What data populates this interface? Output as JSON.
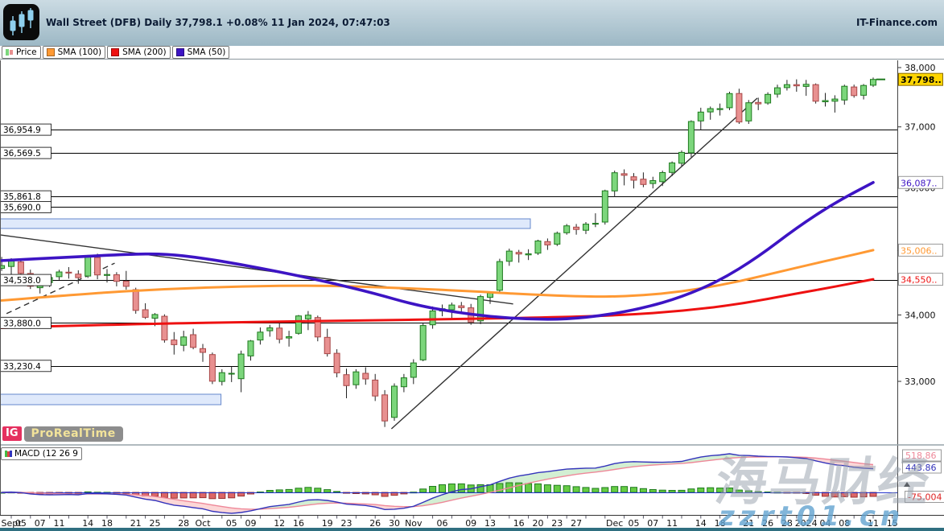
{
  "header": {
    "title": "Wall Street (DFB) Daily 37,798.1 +0.08% 11 Jan 2024, 07:47:03",
    "brand": "IT-Finance.com"
  },
  "legend": {
    "items": [
      {
        "label": "Price",
        "icon": "price-candles-icon"
      },
      {
        "label": "SMA (100)",
        "icon": "orange-square-icon",
        "color_key": "sma100"
      },
      {
        "label": "SMA (200)",
        "icon": "red-square-icon",
        "color_key": "sma200"
      },
      {
        "label": "SMA (50)",
        "icon": "blue-square-icon",
        "color_key": "sma50"
      }
    ]
  },
  "macd_legend": {
    "label": "MACD (12 26 9"
  },
  "badge": {
    "ig": "IG",
    "prorealtime": "ProRealTime"
  },
  "watermark": {
    "text_cn": "海马财经",
    "site": "zzrt01.cn"
  },
  "colors": {
    "up_fill": "#7CD67C",
    "up_stroke": "#1E7A1E",
    "down_fill": "#E89090",
    "down_stroke": "#A84848",
    "wick": "#222222",
    "sma50": "#3D14C4",
    "sma100": "#FF9933",
    "sma200": "#EE1111",
    "macd_line": "#3333BB",
    "signal_line": "#EE8899",
    "fill_up": "rgba(130,210,130,0.35)",
    "fill_down": "rgba(245,140,140,0.35)",
    "hist_up": "#66CC44",
    "hist_up_stroke": "#1E7A1E",
    "hist_down": "#DD6666",
    "hist_down_stroke": "#993333",
    "zone_fill": "#DFE9FB",
    "zone_stroke": "#6688CC",
    "level": "#000000",
    "trend": "#333333",
    "last_bg": "#FFD500",
    "last_border": "#8A6D00",
    "axis_text": "#111111"
  },
  "chart_data": {
    "type": "candlestick",
    "title": "Wall Street (DFB) Daily",
    "last_price": 37798.1,
    "change_pct": "+0.08%",
    "timestamp": "11 Jan 2024, 07:47:03",
    "scale_type": "log",
    "ylim": [
      32080,
      38000
    ],
    "right_axis_ticks": [
      {
        "label": "38,000",
        "price": 38000
      },
      {
        "label": "37,000",
        "price": 37000
      },
      {
        "label": "36,000",
        "price": 36000
      },
      {
        "label": "35,000",
        "price": 35000
      },
      {
        "label": "34,000",
        "price": 34000
      },
      {
        "label": "33,000",
        "price": 33000
      }
    ],
    "axis_markers": [
      {
        "label": "37,798..",
        "price": 37798.1,
        "kind": "last"
      },
      {
        "label": "36,087..",
        "price": 36087,
        "kind": "sma50"
      },
      {
        "label": "35,006..",
        "price": 35006,
        "kind": "sma100"
      },
      {
        "label": "34,550..",
        "price": 34550,
        "kind": "sma200"
      }
    ],
    "levels": [
      {
        "label": "36,954.9",
        "price": 36954.9
      },
      {
        "label": "36,569.5",
        "price": 36569.5
      },
      {
        "label": "35,861.8",
        "price": 35861.8
      },
      {
        "label": "35,690.0",
        "price": 35690.0
      },
      {
        "label": "34,538.0",
        "price": 34538.0
      },
      {
        "label": "33,880.0",
        "price": 33880.0
      },
      {
        "label": "33,230.4",
        "price": 33230.4
      }
    ],
    "zones": [
      {
        "top": 35502,
        "bottom": 35348,
        "i1": -1.2,
        "i2": 54.2
      },
      {
        "top": 32810,
        "bottom": 32656,
        "i1": -1.2,
        "i2": 21.9
      }
    ],
    "trendlines": [
      {
        "i1": -1.2,
        "p1": 35247,
        "i2": 52.4,
        "p2": 34169,
        "style": "solid"
      },
      {
        "i1": 39.7,
        "p1": 32304,
        "i2": 77.9,
        "p2": 37481,
        "style": "solid"
      },
      {
        "i1": -0.5,
        "p1": 34021,
        "i2": 10.8,
        "p2": 34801,
        "style": "dashed"
      }
    ],
    "sma50": [
      [
        -1.2,
        34840
      ],
      [
        0,
        34850
      ],
      [
        6,
        34895
      ],
      [
        12,
        34940
      ],
      [
        16,
        34950
      ],
      [
        20,
        34880
      ],
      [
        24,
        34780
      ],
      [
        28,
        34665
      ],
      [
        33,
        34510
      ],
      [
        38,
        34330
      ],
      [
        42,
        34160
      ],
      [
        46,
        34050
      ],
      [
        50,
        33975
      ],
      [
        54,
        33935
      ],
      [
        58,
        33935
      ],
      [
        62,
        33995
      ],
      [
        66,
        34105
      ],
      [
        70,
        34275
      ],
      [
        74,
        34530
      ],
      [
        78,
        34900
      ],
      [
        82,
        35360
      ],
      [
        86,
        35760
      ],
      [
        90,
        36087
      ]
    ],
    "sma100": [
      [
        -1.2,
        34220
      ],
      [
        8,
        34330
      ],
      [
        16,
        34400
      ],
      [
        24,
        34440
      ],
      [
        32,
        34455
      ],
      [
        40,
        34420
      ],
      [
        48,
        34365
      ],
      [
        54,
        34315
      ],
      [
        60,
        34280
      ],
      [
        64,
        34285
      ],
      [
        68,
        34325
      ],
      [
        72,
        34405
      ],
      [
        76,
        34515
      ],
      [
        80,
        34660
      ],
      [
        84,
        34800
      ],
      [
        87,
        34900
      ],
      [
        90,
        35006
      ]
    ],
    "sma200": [
      [
        -1.2,
        33805
      ],
      [
        12,
        33860
      ],
      [
        24,
        33890
      ],
      [
        36,
        33915
      ],
      [
        48,
        33940
      ],
      [
        58,
        33968
      ],
      [
        64,
        34000
      ],
      [
        70,
        34060
      ],
      [
        76,
        34165
      ],
      [
        82,
        34330
      ],
      [
        86,
        34435
      ],
      [
        90,
        34550
      ]
    ],
    "x_labels": [
      [
        "Sept",
        0
      ],
      [
        "05",
        1
      ],
      [
        "07",
        3
      ],
      [
        "11",
        5
      ],
      [
        "14",
        8
      ],
      [
        "18",
        10
      ],
      [
        "21",
        13
      ],
      [
        "25",
        15
      ],
      [
        "28",
        18
      ],
      [
        "Oct",
        20
      ],
      [
        "05",
        23
      ],
      [
        "09",
        25
      ],
      [
        "12",
        28
      ],
      [
        "16",
        30
      ],
      [
        "19",
        33
      ],
      [
        "23",
        35
      ],
      [
        "26",
        38
      ],
      [
        "30",
        40
      ],
      [
        "Nov",
        42
      ],
      [
        "06",
        45
      ],
      [
        "09",
        48
      ],
      [
        "13",
        50
      ],
      [
        "16",
        53
      ],
      [
        "20",
        55
      ],
      [
        "23",
        57
      ],
      [
        "27",
        59
      ],
      [
        "Dec",
        63
      ],
      [
        "05",
        65
      ],
      [
        "07",
        67
      ],
      [
        "11",
        69
      ],
      [
        "14",
        72
      ],
      [
        "18",
        74
      ],
      [
        "21",
        77
      ],
      [
        "26",
        79
      ],
      [
        "28",
        81
      ],
      [
        "2024",
        83
      ],
      [
        "04",
        85
      ],
      [
        "08",
        87
      ],
      [
        "11",
        90
      ],
      [
        "15",
        92
      ]
    ],
    "macd": {
      "params": "12,26,9",
      "signal_value": "518.86",
      "macd_value": "443.86",
      "histogram_value": "-75.004"
    },
    "candles": [
      [
        "Aug 31",
        34720,
        34900,
        34680,
        34763
      ],
      [
        "Sep 01",
        34750,
        34880,
        34600,
        34838
      ],
      [
        "Sep 05",
        34820,
        34850,
        34560,
        34642
      ],
      [
        "Sep 06",
        34640,
        34700,
        34400,
        34443
      ],
      [
        "Sep 07",
        34420,
        34560,
        34330,
        34501
      ],
      [
        "Sep 08",
        34500,
        34620,
        34430,
        34577
      ],
      [
        "Sep 11",
        34590,
        34700,
        34540,
        34664
      ],
      [
        "Sep 12",
        34660,
        34740,
        34560,
        34646
      ],
      [
        "Sep 13",
        34630,
        34690,
        34480,
        34575
      ],
      [
        "Sep 14",
        34600,
        34930,
        34570,
        34907
      ],
      [
        "Sep 15",
        34890,
        34950,
        34550,
        34618
      ],
      [
        "Sep 18",
        34610,
        34710,
        34500,
        34624
      ],
      [
        "Sep 19",
        34620,
        34660,
        34440,
        34518
      ],
      [
        "Sep 20",
        34520,
        34680,
        34390,
        34440
      ],
      [
        "Sep 21",
        34390,
        34420,
        34020,
        34070
      ],
      [
        "Sep 22",
        34080,
        34180,
        33940,
        33964
      ],
      [
        "Sep 25",
        33950,
        34030,
        33830,
        34007
      ],
      [
        "Sep 26",
        33980,
        34010,
        33580,
        33619
      ],
      [
        "Sep 27",
        33620,
        33740,
        33400,
        33550
      ],
      [
        "Sep 28",
        33540,
        33760,
        33450,
        33666
      ],
      [
        "Sep 29",
        33700,
        33790,
        33480,
        33508
      ],
      [
        "Oct 02",
        33490,
        33560,
        33290,
        33433
      ],
      [
        "Oct 03",
        33400,
        33430,
        32960,
        33002
      ],
      [
        "Oct 04",
        33000,
        33180,
        32940,
        33130
      ],
      [
        "Oct 05",
        33110,
        33220,
        32990,
        33120
      ],
      [
        "Oct 06",
        33040,
        33460,
        32840,
        33408
      ],
      [
        "Oct 09",
        33380,
        33620,
        33310,
        33605
      ],
      [
        "Oct 10",
        33620,
        33810,
        33550,
        33739
      ],
      [
        "Oct 11",
        33760,
        33850,
        33670,
        33804
      ],
      [
        "Oct 12",
        33800,
        33880,
        33570,
        33631
      ],
      [
        "Oct 13",
        33650,
        33760,
        33520,
        33670
      ],
      [
        "Oct 16",
        33720,
        34000,
        33700,
        33985
      ],
      [
        "Oct 17",
        33940,
        34060,
        33770,
        33997
      ],
      [
        "Oct 18",
        33960,
        33990,
        33600,
        33665
      ],
      [
        "Oct 19",
        33660,
        33790,
        33370,
        33414
      ],
      [
        "Oct 20",
        33420,
        33480,
        33060,
        33127
      ],
      [
        "Oct 23",
        33100,
        33190,
        32750,
        32937
      ],
      [
        "Oct 24",
        32950,
        33180,
        32890,
        33141
      ],
      [
        "Oct 25",
        33120,
        33210,
        32950,
        33036
      ],
      [
        "Oct 26",
        33020,
        33110,
        32710,
        32784
      ],
      [
        "Oct 27",
        32800,
        32870,
        32330,
        32418
      ],
      [
        "Oct 30",
        32470,
        32970,
        32420,
        32929
      ],
      [
        "Oct 31",
        32920,
        33110,
        32840,
        33053
      ],
      [
        "Nov 01",
        33060,
        33330,
        32960,
        33275
      ],
      [
        "Nov 02",
        33320,
        33870,
        33300,
        33839
      ],
      [
        "Nov 03",
        33850,
        34130,
        33790,
        34061
      ],
      [
        "Nov 06",
        34060,
        34160,
        33980,
        34096
      ],
      [
        "Nov 07",
        34080,
        34190,
        33950,
        34153
      ],
      [
        "Nov 08",
        34140,
        34200,
        34040,
        34112
      ],
      [
        "Nov 09",
        34110,
        34170,
        33850,
        33892
      ],
      [
        "Nov 10",
        33910,
        34310,
        33860,
        34283
      ],
      [
        "Nov 13",
        34270,
        34350,
        34170,
        34337
      ],
      [
        "Nov 14",
        34380,
        34870,
        34350,
        34827
      ],
      [
        "Nov 15",
        34830,
        35030,
        34760,
        34991
      ],
      [
        "Nov 16",
        34970,
        35010,
        34810,
        34945
      ],
      [
        "Nov 17",
        34930,
        35020,
        34850,
        34947
      ],
      [
        "Nov 20",
        34960,
        35170,
        34930,
        35151
      ],
      [
        "Nov 21",
        35140,
        35190,
        35010,
        35088
      ],
      [
        "Nov 22",
        35100,
        35300,
        35070,
        35273
      ],
      [
        "Nov 24",
        35280,
        35420,
        35250,
        35390
      ],
      [
        "Nov 27",
        35370,
        35420,
        35250,
        35333
      ],
      [
        "Nov 28",
        35320,
        35450,
        35260,
        35417
      ],
      [
        "Nov 29",
        35430,
        35590,
        35370,
        35430
      ],
      [
        "Nov 30",
        35450,
        35970,
        35410,
        35951
      ],
      [
        "Dec 01",
        35950,
        36280,
        35850,
        36245
      ],
      [
        "Dec 04",
        36230,
        36300,
        36040,
        36204
      ],
      [
        "Dec 05",
        36180,
        36240,
        35990,
        36124
      ],
      [
        "Dec 06",
        36140,
        36250,
        36010,
        36054
      ],
      [
        "Dec 07",
        36070,
        36180,
        35990,
        36117
      ],
      [
        "Dec 08",
        36100,
        36280,
        36030,
        36248
      ],
      [
        "Dec 11",
        36250,
        36430,
        36190,
        36405
      ],
      [
        "Dec 12",
        36400,
        36610,
        36350,
        36578
      ],
      [
        "Dec 13",
        36570,
        37110,
        36500,
        37090
      ],
      [
        "Dec 14",
        37100,
        37320,
        36950,
        37248
      ],
      [
        "Dec 15",
        37250,
        37340,
        37120,
        37305
      ],
      [
        "Dec 18",
        37290,
        37390,
        37190,
        37306
      ],
      [
        "Dec 19",
        37320,
        37590,
        37280,
        37558
      ],
      [
        "Dec 20",
        37560,
        37640,
        37050,
        37082
      ],
      [
        "Dec 21",
        37100,
        37450,
        37050,
        37404
      ],
      [
        "Dec 22",
        37410,
        37490,
        37280,
        37386
      ],
      [
        "Dec 26",
        37400,
        37580,
        37370,
        37545
      ],
      [
        "Dec 27",
        37550,
        37710,
        37490,
        37657
      ],
      [
        "Dec 28",
        37660,
        37790,
        37610,
        37710
      ],
      [
        "Dec 29",
        37710,
        37800,
        37590,
        37690
      ],
      [
        "Jan 02",
        37680,
        37790,
        37520,
        37715
      ],
      [
        "Jan 03",
        37710,
        37730,
        37390,
        37430
      ],
      [
        "Jan 04",
        37420,
        37570,
        37340,
        37440
      ],
      [
        "Jan 05",
        37430,
        37530,
        37240,
        37466
      ],
      [
        "Jan 08",
        37450,
        37710,
        37370,
        37683
      ],
      [
        "Jan 09",
        37670,
        37710,
        37490,
        37525
      ],
      [
        "Jan 10",
        37530,
        37720,
        37460,
        37696
      ],
      [
        "Jan 11",
        37700,
        37830,
        37670,
        37798
      ]
    ]
  }
}
